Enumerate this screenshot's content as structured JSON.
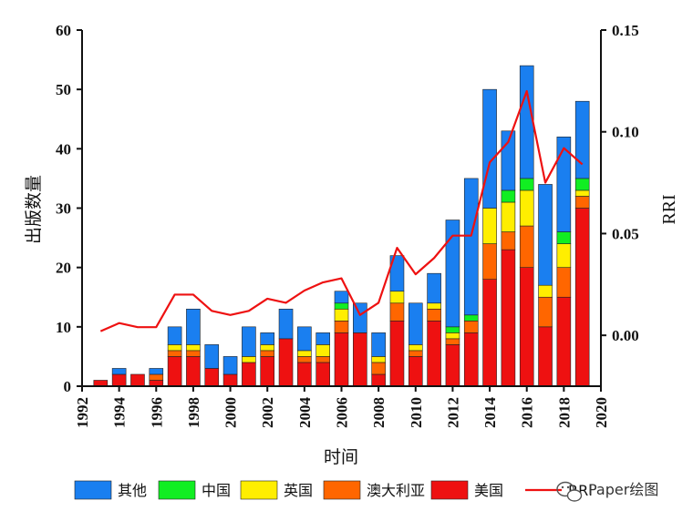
{
  "chart_data": {
    "type": "bar",
    "stacked": true,
    "title": "",
    "xlabel": "时间",
    "ylabel": "出版数量",
    "y2label": "RRI",
    "xlim": [
      1992,
      2020
    ],
    "ylim": [
      0,
      60
    ],
    "y2lim": [
      -0.025,
      0.15
    ],
    "x_ticks": [
      1992,
      1994,
      1996,
      1998,
      2000,
      2002,
      2004,
      2006,
      2008,
      2010,
      2012,
      2014,
      2016,
      2018,
      2020
    ],
    "y_ticks": [
      0,
      10,
      20,
      30,
      40,
      50,
      60
    ],
    "y2_ticks": [
      "0.00",
      "0.05",
      "0.10",
      "0.15"
    ],
    "y2_tick_values": [
      0.0,
      0.05,
      0.1,
      0.15
    ],
    "years": [
      1993,
      1994,
      1995,
      1996,
      1997,
      1998,
      1999,
      2000,
      2001,
      2002,
      2003,
      2004,
      2005,
      2006,
      2007,
      2008,
      2009,
      2010,
      2011,
      2012,
      2013,
      2014,
      2015,
      2016,
      2017,
      2018,
      2019
    ],
    "series": [
      {
        "name": "美国",
        "color": "#ee1111",
        "values": [
          1,
          2,
          2,
          1,
          5,
          5,
          3,
          2,
          4,
          5,
          8,
          4,
          4,
          9,
          9,
          2,
          11,
          5,
          11,
          7,
          9,
          18,
          23,
          20,
          10,
          15,
          30
        ]
      },
      {
        "name": "澳大利亚",
        "color": "#ff6600",
        "values": [
          0,
          0,
          0,
          1,
          1,
          1,
          0,
          0,
          0,
          1,
          0,
          1,
          1,
          2,
          0,
          2,
          3,
          1,
          2,
          1,
          2,
          6,
          3,
          7,
          5,
          5,
          2
        ]
      },
      {
        "name": "英国",
        "color": "#ffee00",
        "values": [
          0,
          0,
          0,
          0,
          1,
          1,
          0,
          0,
          1,
          1,
          0,
          1,
          2,
          2,
          0,
          1,
          2,
          1,
          1,
          1,
          0,
          6,
          5,
          6,
          2,
          4,
          1
        ]
      },
      {
        "name": "中国",
        "color": "#11ee22",
        "values": [
          0,
          0,
          0,
          0,
          0,
          0,
          0,
          0,
          0,
          0,
          0,
          0,
          0,
          1,
          0,
          0,
          0,
          0,
          0,
          1,
          1,
          0,
          2,
          2,
          0,
          2,
          2
        ]
      },
      {
        "name": "其他",
        "color": "#1a7ff0",
        "values": [
          0,
          1,
          0,
          1,
          3,
          6,
          4,
          3,
          5,
          2,
          5,
          4,
          2,
          2,
          5,
          4,
          6,
          7,
          5,
          18,
          23,
          20,
          10,
          19,
          17,
          16,
          13
        ]
      }
    ],
    "line": {
      "name": "RRI",
      "color": "#ee1111",
      "values": [
        0.002,
        0.006,
        0.004,
        0.004,
        0.02,
        0.02,
        0.012,
        0.01,
        0.012,
        0.018,
        0.016,
        0.022,
        0.026,
        0.028,
        0.01,
        0.016,
        0.043,
        0.03,
        0.038,
        0.049,
        0.049,
        0.085,
        0.095,
        0.12,
        0.075,
        0.092,
        0.084
      ]
    },
    "legend": {
      "placement": "bottom",
      "items": [
        {
          "label": "其他",
          "color": "#1a7ff0",
          "kind": "box"
        },
        {
          "label": "中国",
          "color": "#11ee22",
          "kind": "box"
        },
        {
          "label": "英国",
          "color": "#ffee00",
          "kind": "box"
        },
        {
          "label": "澳大利亚",
          "color": "#ff6600",
          "kind": "box"
        },
        {
          "label": "美国",
          "color": "#ee1111",
          "kind": "box"
        },
        {
          "label": "RRI",
          "color": "#ee1111",
          "kind": "line"
        }
      ]
    },
    "watermark": "Paper绘图",
    "watermark_icon": "wechat-icon"
  }
}
